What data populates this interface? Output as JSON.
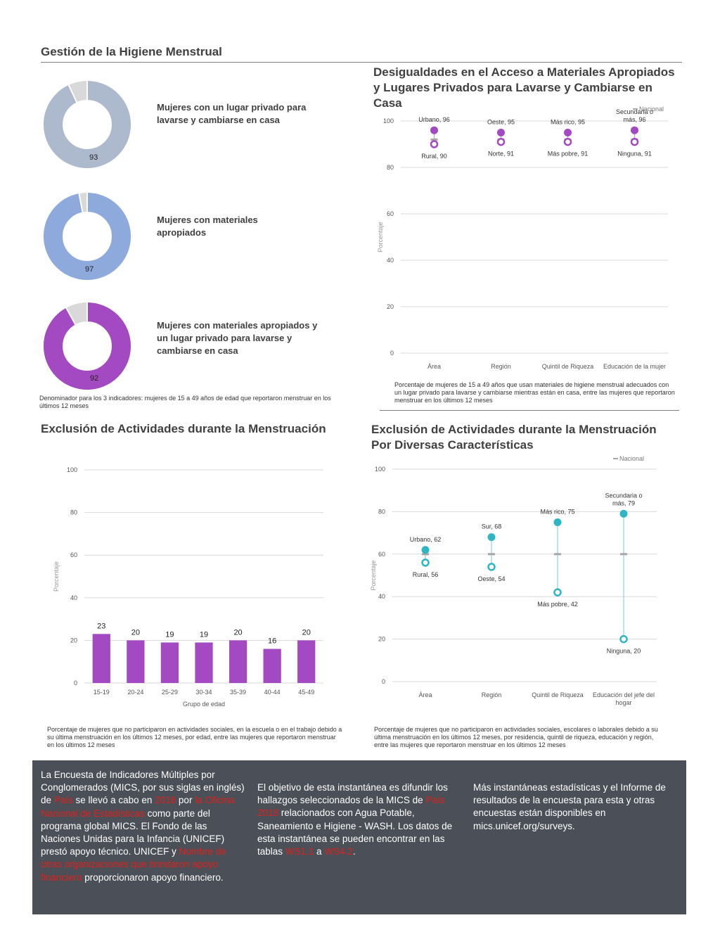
{
  "page_title": "Gestión de la Higiene Menstrual",
  "donuts": [
    {
      "label": "Mujeres con un lugar privado para lavarse y cambiarse en casa",
      "value": 93,
      "value_text": "93",
      "color": "#adb9cc"
    },
    {
      "label": "Mujeres con materiales apropiados",
      "value": 97,
      "value_text": "97",
      "color": "#8ea9dc"
    },
    {
      "label": "Mujeres con materiales apropiados y un lugar privado para lavarse y cambiarse en casa",
      "value": 92,
      "value_text": "92",
      "color": "#a349c1"
    }
  ],
  "donut_remainder_color": "#d9d9d9",
  "denominator_note": "Denominador para los 3 indicadores: mujeres de 15 a 49 años de edad que reportaron menstruar en los últimos 12 meses",
  "chart1": {
    "title": "Desigualdades en el Acceso a Materiales Apropiados y Lugares Privados para Lavarse y Cambiarse en Casa",
    "note": "Porcentaje de mujeres de 15 a 49 años que usan materiales de higiene menstrual adecuados con un lugar privado para lavarse y cambiarse mientras están en casa, entre las mujeres que reportaron menstruar en los últimos 12 meses",
    "legend_nacional": "Nacional"
  },
  "chart2": {
    "title": "Exclusión de Actividades durante la Menstruación",
    "note": "Porcentaje de mujeres que no participaron en actividades sociales, en la escuela o en el trabajo debido a su última menstruación en los últimos 12 meses, por edad, entre las mujeres que reportaron menstruar en los últimos 12 meses"
  },
  "chart3": {
    "title": "Exclusión de Actividades durante la Menstruación Por Diversas Características",
    "note": "Porcentaje de mujeres que no participaron en actividades sociales, escolares o laborales debido a su última menstruación en los últimos 12 meses, por residencia, quintil de riqueza, educación y región, entre las mujeres que reportaron menstruar en los últimos 12 meses",
    "legend_nacional": "Nacional"
  },
  "chart_data": [
    {
      "type": "dot-range",
      "ylabel": "Porcentaje",
      "ylim": [
        0,
        100
      ],
      "yticks": [
        0,
        20,
        40,
        60,
        80,
        100
      ],
      "grid": true,
      "color": "#a349c1",
      "categories": [
        "Área",
        "Región",
        "Quintil de Riqueza",
        "Educación de la mujer"
      ],
      "high": [
        {
          "label": "Urbano, 96",
          "value": 96
        },
        {
          "label": "Oeste, 95",
          "value": 95
        },
        {
          "label": "Más rico, 95",
          "value": 95
        },
        {
          "label": "Secundaria o más, 96",
          "value": 96
        }
      ],
      "low": [
        {
          "label": "Rural, 90",
          "value": 90
        },
        {
          "label": "Norte, 91",
          "value": 91
        },
        {
          "label": "Más pobre, 91",
          "value": 91
        },
        {
          "label": "Ninguna, 91",
          "value": 91
        }
      ],
      "national": 92
    },
    {
      "type": "bar",
      "xlabel": "Grupo de edad",
      "ylabel": "Porcentaje",
      "ylim": [
        0,
        100
      ],
      "yticks": [
        0,
        20,
        40,
        60,
        80,
        100
      ],
      "grid": true,
      "color": "#a349c1",
      "categories": [
        "15-19",
        "20-24",
        "25-29",
        "30-34",
        "35-39",
        "40-44",
        "45-49"
      ],
      "values": [
        23,
        20,
        19,
        19,
        20,
        16,
        20
      ]
    },
    {
      "type": "dot-range",
      "ylabel": "Porcentaje",
      "ylim": [
        0,
        100
      ],
      "yticks": [
        0,
        20,
        40,
        60,
        80,
        100
      ],
      "grid": true,
      "color": "#2fb5c4",
      "categories": [
        "Área",
        "Región",
        "Quintil de Riqueza",
        "Educación del jefe del hogar"
      ],
      "high": [
        {
          "label": "Urbano, 62",
          "value": 62
        },
        {
          "label": "Sur, 68",
          "value": 68
        },
        {
          "label": "Más rico, 75",
          "value": 75
        },
        {
          "label": "Secundaria o más, 79",
          "value": 79
        }
      ],
      "low": [
        {
          "label": "Rural, 56",
          "value": 56
        },
        {
          "label": "Oeste, 54",
          "value": 54
        },
        {
          "label": "Más pobre, 42",
          "value": 42
        },
        {
          "label": "Ninguna, 20",
          "value": 20
        }
      ],
      "national": 60
    }
  ],
  "footer": {
    "col1": [
      {
        "t": "La Encuesta de Indicadores Múltiples por Conglomerados (MICS, por sus siglas en inglés) de ",
        "red": false
      },
      {
        "t": "País",
        "red": true
      },
      {
        "t": " se llevó a cabo en ",
        "red": false
      },
      {
        "t": "2018",
        "red": true
      },
      {
        "t": " por ",
        "red": false
      },
      {
        "t": "la Oficina Nacional de Estadísticas",
        "red": true
      },
      {
        "t": " como parte del programa global MICS. El Fondo de las Naciones Unidas para la Infancia (UNICEF) prestó apoyo técnico. UNICEF y ",
        "red": false
      },
      {
        "t": "Nombre de otras organizaciones que brindaron apoyo financiero",
        "red": true
      },
      {
        "t": " proporcionaron apoyo financiero.",
        "red": false
      }
    ],
    "col2": [
      {
        "t": "El objetivo de esta instantánea es difundir los hallazgos seleccionados de la MICS de ",
        "red": false
      },
      {
        "t": "País 2018",
        "red": true
      },
      {
        "t": " relacionados con Agua Potable, Saneamiento e Higiene - WASH. Los datos de esta instantánea se pueden encontrar en las tablas ",
        "red": false
      },
      {
        "t": "WS1.1",
        "red": true
      },
      {
        "t": " a ",
        "red": false
      },
      {
        "t": "WS4.2",
        "red": true
      },
      {
        "t": ".",
        "red": false
      }
    ],
    "col3": "Más instantáneas estadísticas y el Informe de resultados de la encuesta para esta y otras encuestas están disponibles en mics.unicef.org/surveys."
  }
}
